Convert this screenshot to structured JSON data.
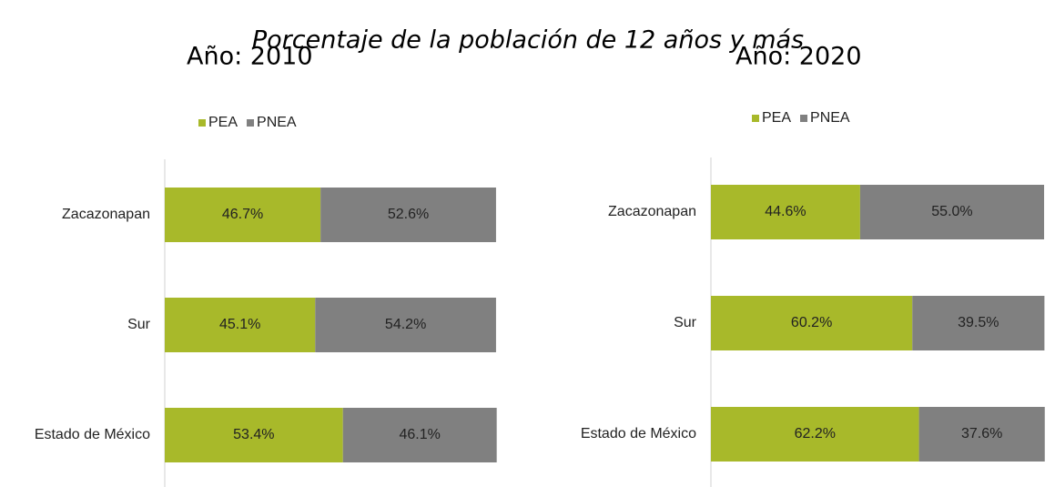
{
  "title": "Porcentaje de la población de 12 años y más",
  "chart_data": [
    {
      "type": "stacked_bar_horizontal",
      "title": "Año: 2010",
      "categories": [
        "Zacazonapan",
        "Sur",
        "Estado de México"
      ],
      "series": [
        {
          "name": "PEA",
          "color": "#a8b92a",
          "values": [
            46.7,
            45.1,
            53.4
          ],
          "value_labels": [
            "46.7%",
            "45.1%",
            "53.4%"
          ]
        },
        {
          "name": "PNEA",
          "color": "#808080",
          "values": [
            52.6,
            54.2,
            46.1
          ],
          "value_labels": [
            "52.6%",
            "54.2%",
            "46.1%"
          ]
        }
      ],
      "xlim": [
        0,
        100
      ],
      "legend": "top"
    },
    {
      "type": "stacked_bar_horizontal",
      "title": "Año: 2020",
      "categories": [
        "Zacazonapan",
        "Sur",
        "Estado de México"
      ],
      "series": [
        {
          "name": "PEA",
          "color": "#a8b92a",
          "values": [
            44.6,
            60.2,
            62.2
          ],
          "value_labels": [
            "44.6%",
            "60.2%",
            "62.2%"
          ]
        },
        {
          "name": "PNEA",
          "color": "#808080",
          "values": [
            55.0,
            39.5,
            37.6
          ],
          "value_labels": [
            "55.0%",
            "39.5%",
            "37.6%"
          ]
        }
      ],
      "xlim": [
        0,
        100
      ],
      "legend": "top"
    }
  ]
}
